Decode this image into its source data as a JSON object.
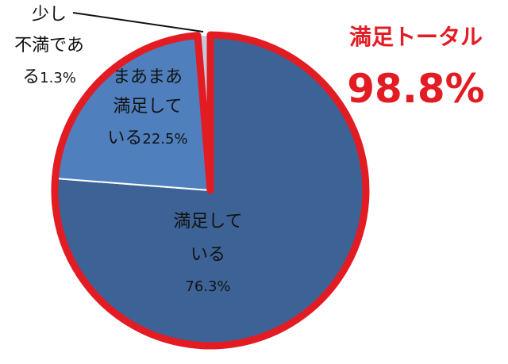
{
  "chart_data": {
    "type": "pie",
    "slices": [
      {
        "id": "satisfied",
        "label_lines": [
          "満足して",
          "いる"
        ],
        "percent_text": "76.3%",
        "value": 76.3,
        "color": "#3d6396"
      },
      {
        "id": "somewhat-satisfied",
        "label_lines": [
          "まあまあ",
          "満足して"
        ],
        "label_prefix": "いる",
        "percent_text": "22.5%",
        "value": 22.5,
        "color": "#4f80bd"
      },
      {
        "id": "slightly-dissatisfied",
        "label_lines": [
          "少し",
          "不満であ"
        ],
        "label_prefix": "る",
        "percent_text": "1.3%",
        "value": 1.3,
        "color": "#c4cbd8"
      }
    ],
    "highlight": {
      "title": "満足トータル",
      "value_text": "98.8%",
      "value": 98.8,
      "color": "#e31b23"
    }
  }
}
